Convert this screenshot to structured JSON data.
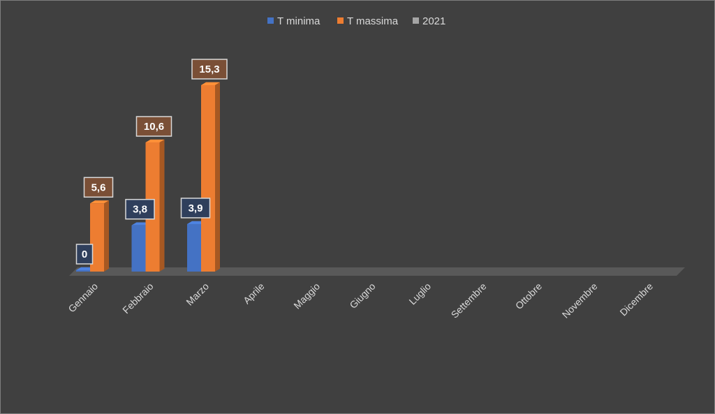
{
  "chart_data": {
    "type": "bar",
    "title": "",
    "xlabel": "",
    "ylabel": "",
    "categories": [
      "Gennaio",
      "Febbraio",
      "Marzo",
      "Aprile",
      "Maggio",
      "Giugno",
      "Luglio",
      "Settembre",
      "Ottobre",
      "Novembre",
      "Dicembre"
    ],
    "series": [
      {
        "name": "T minima",
        "color": "#4472c4",
        "label_bg": "#2f3f5c",
        "values": [
          0,
          3.8,
          3.9,
          null,
          null,
          null,
          null,
          null,
          null,
          null,
          null
        ],
        "labels": [
          "0",
          "3,8",
          "3,9",
          null,
          null,
          null,
          null,
          null,
          null,
          null,
          null
        ]
      },
      {
        "name": "T massima",
        "color": "#ed7d31",
        "label_bg": "#7a4f36",
        "values": [
          5.6,
          10.6,
          15.3,
          null,
          null,
          null,
          null,
          null,
          null,
          null,
          null
        ],
        "labels": [
          "5,6",
          "10,6",
          "15,3",
          null,
          null,
          null,
          null,
          null,
          null,
          null,
          null
        ]
      },
      {
        "name": "2021",
        "color": "#a5a5a5",
        "label_bg": "#555555",
        "values": [
          null,
          null,
          null,
          null,
          null,
          null,
          null,
          null,
          null,
          null,
          null
        ],
        "labels": [
          null,
          null,
          null,
          null,
          null,
          null,
          null,
          null,
          null,
          null,
          null
        ]
      }
    ],
    "ylim": [
      0,
      15.3
    ],
    "legend_position": "top-center",
    "grid": false,
    "style": "3d-column",
    "colors": {
      "background": "#404040",
      "text": "#d9d9d9",
      "floor": "#595959"
    }
  }
}
